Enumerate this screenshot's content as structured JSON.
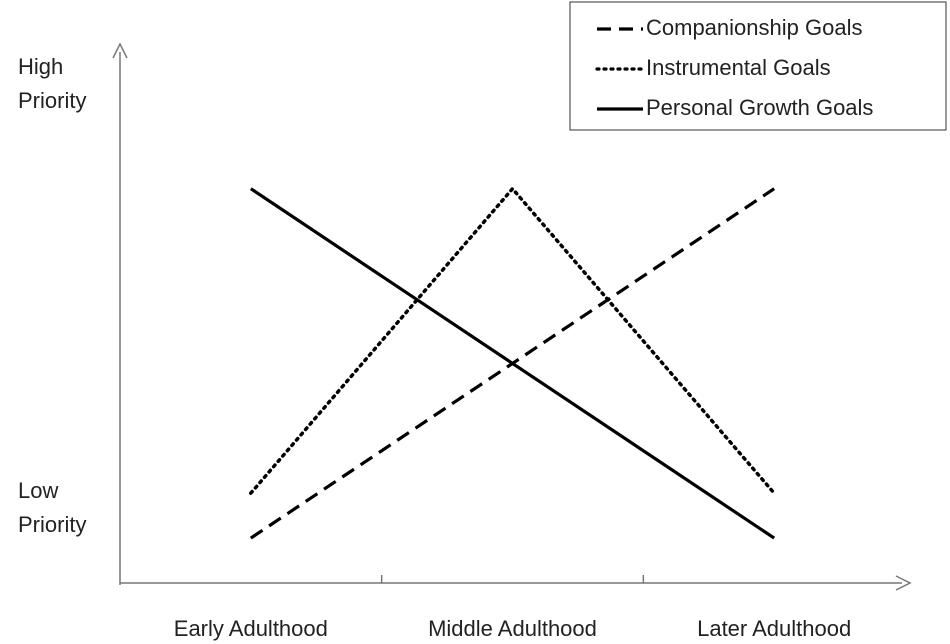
{
  "chart_data": {
    "type": "line",
    "categories": [
      "Early Adulthood",
      "Middle Adulthood",
      "Later Adulthood"
    ],
    "series": [
      {
        "name": "Companionship Goals",
        "color": "#000000",
        "dash": "dashed",
        "values": [
          0.9,
          4.4,
          7.9
        ]
      },
      {
        "name": "Instrumental Goals",
        "color": "#000000",
        "dash": "dotted",
        "values": [
          1.8,
          7.9,
          1.8
        ]
      },
      {
        "name": "Personal Growth Goals",
        "color": "#000000",
        "dash": "solid",
        "values": [
          7.9,
          4.4,
          0.9
        ]
      }
    ],
    "ylim": [
      0,
      10.8
    ],
    "yticks": [
      {
        "value": 1.5,
        "label": "Low Priority"
      },
      {
        "value": 10,
        "label": "High Priority"
      }
    ],
    "legend": "upper right"
  }
}
